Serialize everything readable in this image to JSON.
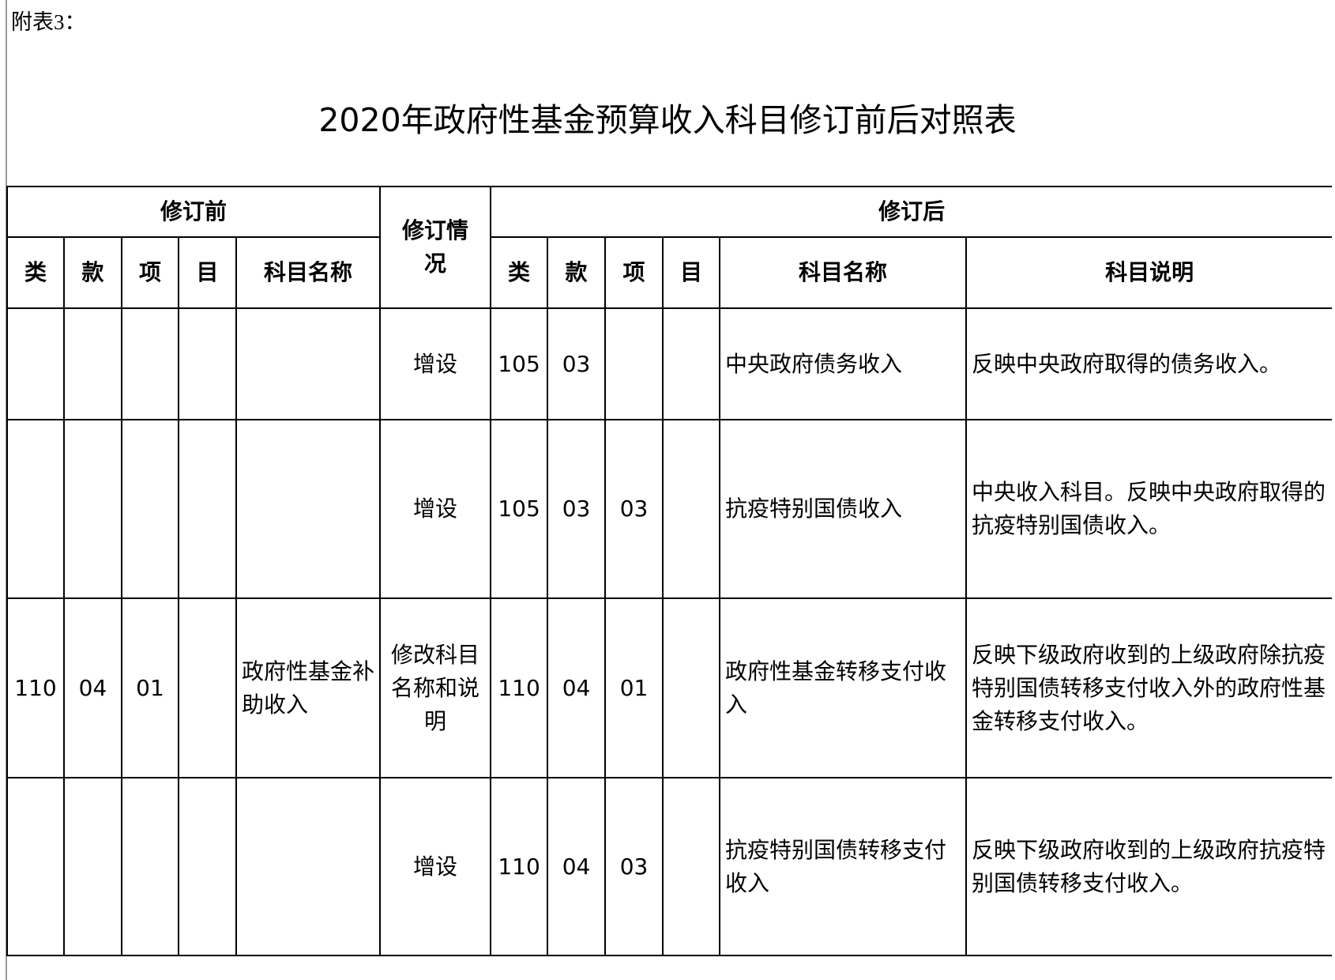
{
  "note": "附表3：",
  "title": "2020年政府性基金预算收入科目修订前后对照表",
  "header": {
    "before": "修订前",
    "status": "修订情况",
    "after": "修订后",
    "lei": "类",
    "kuan": "款",
    "xiang": "项",
    "mu": "目",
    "name": "科目名称",
    "desc": "科目说明"
  },
  "rows": [
    {
      "before": {
        "lei": "",
        "kuan": "",
        "xiang": "",
        "mu": "",
        "name": ""
      },
      "status": "增设",
      "after": {
        "lei": "105",
        "kuan": "03",
        "xiang": "",
        "mu": "",
        "name": "中央政府债务收入",
        "desc": "反映中央政府取得的债务收入。"
      }
    },
    {
      "before": {
        "lei": "",
        "kuan": "",
        "xiang": "",
        "mu": "",
        "name": ""
      },
      "status": "增设",
      "after": {
        "lei": "105",
        "kuan": "03",
        "xiang": "03",
        "mu": "",
        "name": "抗疫特别国债收入",
        "desc": "中央收入科目。反映中央政府取得的抗疫特别国债收入。"
      }
    },
    {
      "before": {
        "lei": "110",
        "kuan": "04",
        "xiang": "01",
        "mu": "",
        "name": "政府性基金补助收入"
      },
      "status": "修改科目名称和说明",
      "after": {
        "lei": "110",
        "kuan": "04",
        "xiang": "01",
        "mu": "",
        "name": "政府性基金转移支付收入",
        "desc": "反映下级政府收到的上级政府除抗疫特别国债转移支付收入外的政府性基金转移支付收入。"
      }
    },
    {
      "before": {
        "lei": "",
        "kuan": "",
        "xiang": "",
        "mu": "",
        "name": ""
      },
      "status": "增设",
      "after": {
        "lei": "110",
        "kuan": "04",
        "xiang": "03",
        "mu": "",
        "name": "抗疫特别国债转移支付收入",
        "desc": "反映下级政府收到的上级政府抗疫特别国债转移支付收入。"
      }
    }
  ]
}
